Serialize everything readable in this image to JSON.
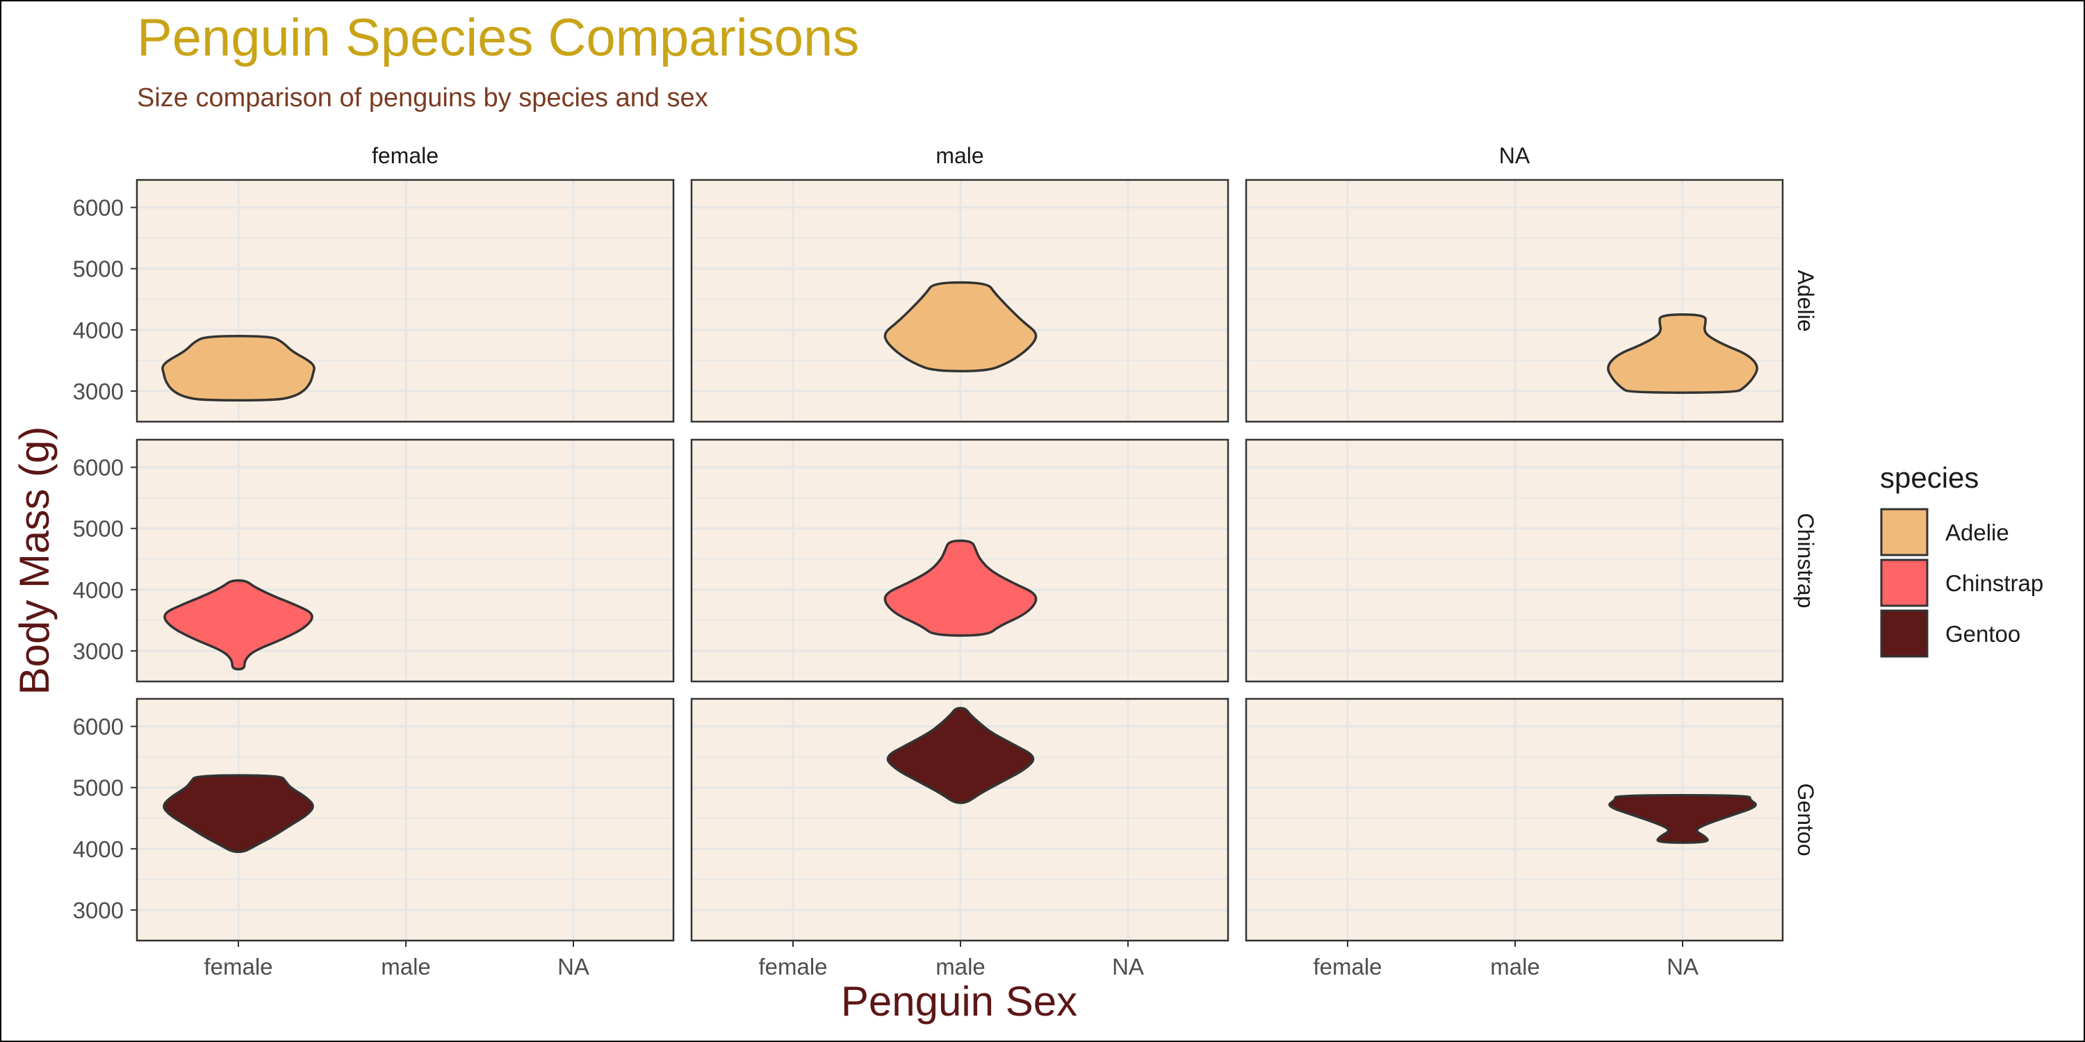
{
  "chart_data": {
    "type": "violin",
    "title": "Penguin Species Comparisons",
    "subtitle": "Size comparison of penguins by species and sex",
    "xlabel": "Penguin Sex",
    "ylabel": "Body Mass (g)",
    "facet_columns": [
      "female",
      "male",
      "NA"
    ],
    "facet_rows": [
      "Adelie",
      "Chinstrap",
      "Gentoo"
    ],
    "x_categories": [
      "female",
      "male",
      "NA"
    ],
    "y_ticks": [
      3000,
      4000,
      5000,
      6000
    ],
    "ylim": [
      2500,
      6450
    ],
    "grid": true,
    "legend": {
      "title": "species",
      "position": "right",
      "entries": [
        {
          "label": "Adelie",
          "color": "#f0bb7a"
        },
        {
          "label": "Chinstrap",
          "color": "#ff6467"
        },
        {
          "label": "Gentoo",
          "color": "#5c1917"
        }
      ]
    },
    "colors": {
      "panel_background": "#f8eee4",
      "grid": "#e6e6e6",
      "outline": "#333333",
      "title": "#c9a417",
      "subtitle": "#7a3b22",
      "axis_title": "#5c1616"
    },
    "violins": [
      {
        "species": "Adelie",
        "sex": "female",
        "min": 2850,
        "max": 3900,
        "profile": [
          [
            2850,
            0.46
          ],
          [
            2900,
            0.7
          ],
          [
            3000,
            0.86
          ],
          [
            3150,
            0.95
          ],
          [
            3300,
            0.98
          ],
          [
            3400,
            1.0
          ],
          [
            3500,
            0.92
          ],
          [
            3650,
            0.7
          ],
          [
            3800,
            0.58
          ],
          [
            3900,
            0.42
          ]
        ]
      },
      {
        "species": "Adelie",
        "sex": "male",
        "min": 3325,
        "max": 4775,
        "profile": [
          [
            3325,
            0.35
          ],
          [
            3450,
            0.6
          ],
          [
            3600,
            0.8
          ],
          [
            3800,
            0.97
          ],
          [
            3950,
            1.0
          ],
          [
            4100,
            0.85
          ],
          [
            4250,
            0.72
          ],
          [
            4400,
            0.6
          ],
          [
            4600,
            0.45
          ],
          [
            4775,
            0.35
          ]
        ]
      },
      {
        "species": "Adelie",
        "sex": "NA",
        "min": 2975,
        "max": 4250,
        "profile": [
          [
            2975,
            0.7
          ],
          [
            3050,
            0.8
          ],
          [
            3200,
            0.92
          ],
          [
            3400,
            1.0
          ],
          [
            3600,
            0.85
          ],
          [
            3750,
            0.55
          ],
          [
            3900,
            0.33
          ],
          [
            4000,
            0.28
          ],
          [
            4100,
            0.3
          ],
          [
            4250,
            0.3
          ]
        ]
      },
      {
        "species": "Chinstrap",
        "sex": "female",
        "min": 2700,
        "max": 4150,
        "profile": [
          [
            2700,
            0.08
          ],
          [
            2850,
            0.08
          ],
          [
            3000,
            0.2
          ],
          [
            3200,
            0.6
          ],
          [
            3400,
            0.9
          ],
          [
            3600,
            1.0
          ],
          [
            3750,
            0.75
          ],
          [
            3900,
            0.45
          ],
          [
            4050,
            0.2
          ],
          [
            4150,
            0.1
          ]
        ]
      },
      {
        "species": "Chinstrap",
        "sex": "male",
        "min": 3250,
        "max": 4800,
        "profile": [
          [
            3250,
            0.35
          ],
          [
            3400,
            0.5
          ],
          [
            3600,
            0.85
          ],
          [
            3800,
            1.0
          ],
          [
            3950,
            0.97
          ],
          [
            4100,
            0.7
          ],
          [
            4300,
            0.4
          ],
          [
            4500,
            0.25
          ],
          [
            4650,
            0.2
          ],
          [
            4800,
            0.15
          ]
        ]
      },
      {
        "species": "Gentoo",
        "sex": "female",
        "min": 3950,
        "max": 5200,
        "profile": [
          [
            3950,
            0.08
          ],
          [
            4050,
            0.22
          ],
          [
            4200,
            0.45
          ],
          [
            4400,
            0.7
          ],
          [
            4550,
            0.9
          ],
          [
            4700,
            1.0
          ],
          [
            4850,
            0.88
          ],
          [
            5000,
            0.68
          ],
          [
            5100,
            0.62
          ],
          [
            5200,
            0.55
          ]
        ]
      },
      {
        "species": "Gentoo",
        "sex": "male",
        "min": 4750,
        "max": 6300,
        "profile": [
          [
            4750,
            0.08
          ],
          [
            4900,
            0.25
          ],
          [
            5100,
            0.55
          ],
          [
            5300,
            0.85
          ],
          [
            5500,
            1.0
          ],
          [
            5700,
            0.7
          ],
          [
            5900,
            0.4
          ],
          [
            6050,
            0.25
          ],
          [
            6200,
            0.12
          ],
          [
            6300,
            0.06
          ]
        ]
      },
      {
        "species": "Gentoo",
        "sex": "NA",
        "min": 4100,
        "max": 4875,
        "profile": [
          [
            4100,
            0.35
          ],
          [
            4200,
            0.3
          ],
          [
            4300,
            0.15
          ],
          [
            4400,
            0.3
          ],
          [
            4550,
            0.65
          ],
          [
            4700,
            1.0
          ],
          [
            4800,
            0.88
          ],
          [
            4875,
            0.88
          ]
        ]
      }
    ]
  }
}
